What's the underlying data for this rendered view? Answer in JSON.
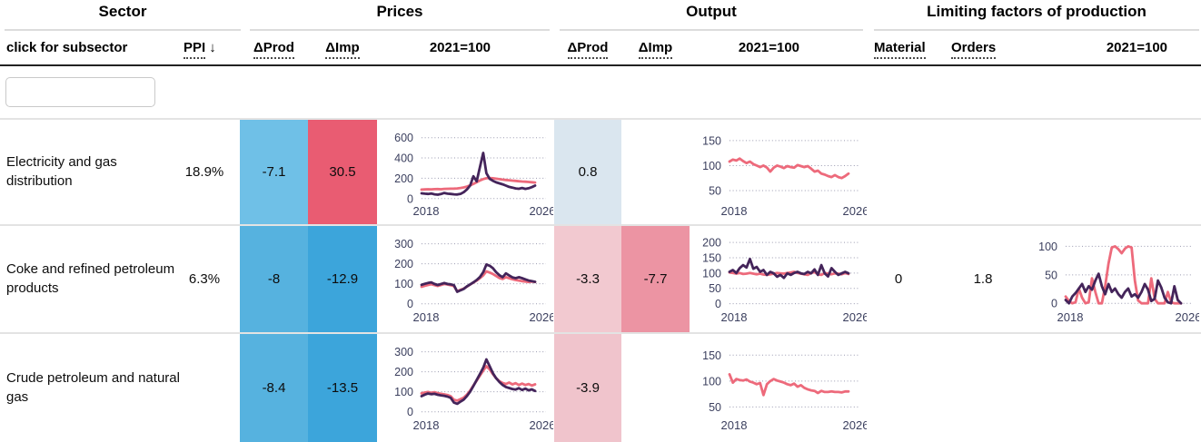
{
  "table": {
    "groups": {
      "sector": "Sector",
      "prices": "Prices",
      "output": "Output",
      "limiting": "Limiting factors of production"
    },
    "columns": {
      "sector": "click for subsector",
      "ppi": "PPI",
      "sort_arrow": "↓",
      "prices_dprod": "ΔProd",
      "prices_dimp": "ΔImp",
      "prices_index": "2021=100",
      "output_dprod": "ΔProd",
      "output_dimp": "ΔImp",
      "output_index": "2021=100",
      "material": "Material",
      "orders": "Orders",
      "limiting_index": "2021=100"
    },
    "search": {
      "value": "",
      "placeholder": ""
    }
  },
  "rows": [
    {
      "sector": "Electricity and gas distribution",
      "ppi": "18.9%",
      "prices_dprod": {
        "value": "-7.1",
        "bg": "#6FC0E7"
      },
      "prices_dimp": {
        "value": "30.5",
        "bg": "#E95C72"
      },
      "output_dprod": {
        "value": "0.8",
        "bg": "#DAE6EF"
      },
      "output_dimp": {
        "value": "",
        "bg": ""
      },
      "material": "",
      "orders": ""
    },
    {
      "sector": "Coke and refined petroleum products",
      "ppi": "6.3%",
      "prices_dprod": {
        "value": "-8",
        "bg": "#56B2DF"
      },
      "prices_dimp": {
        "value": "-12.9",
        "bg": "#3CA5DB"
      },
      "output_dprod": {
        "value": "-3.3",
        "bg": "#F2C9D0"
      },
      "output_dimp": {
        "value": "-7.7",
        "bg": "#EC94A3"
      },
      "material": "0",
      "orders": "1.8"
    },
    {
      "sector": "Crude petroleum and natural gas",
      "ppi": "",
      "prices_dprod": {
        "value": "-8.4",
        "bg": "#56B2DF"
      },
      "prices_dimp": {
        "value": "-13.5",
        "bg": "#3CA5DB"
      },
      "output_dprod": {
        "value": "-3.9",
        "bg": "#F0C4CC"
      },
      "output_dimp": {
        "value": "",
        "bg": ""
      },
      "material": "",
      "orders": ""
    }
  ],
  "chart_style": {
    "grid_color": "#9a9ab0",
    "tick_color": "#3b3f5e",
    "producer_color": "#ED6A7B",
    "import_color": "#44245A"
  },
  "chart_data": [
    {
      "id": "r0-prices",
      "type": "line",
      "title": "Prices 2021=100",
      "x_start": 2018,
      "x_end": 2026,
      "xticks": [
        "2018",
        "2026"
      ],
      "ylim": [
        -20,
        660
      ],
      "yticks": [
        0,
        200,
        400,
        600
      ],
      "series": [
        {
          "name": "producer-prices",
          "color": "#ED6A7B",
          "values": [
            88,
            90,
            92,
            91,
            93,
            94,
            92,
            95,
            96,
            97,
            98,
            100,
            104,
            110,
            118,
            130,
            145,
            162,
            178,
            192,
            200,
            203,
            200,
            196,
            191,
            187,
            183,
            180,
            177,
            174,
            171,
            168,
            166,
            163,
            161,
            158
          ]
        },
        {
          "name": "import-prices",
          "color": "#44245A",
          "values": [
            52,
            48,
            45,
            50,
            42,
            38,
            44,
            55,
            48,
            45,
            42,
            40,
            46,
            62,
            90,
            130,
            220,
            170,
            310,
            450,
            250,
            195,
            175,
            160,
            150,
            140,
            128,
            115,
            108,
            100,
            96,
            104,
            95,
            102,
            112,
            128
          ]
        }
      ]
    },
    {
      "id": "r0-output",
      "type": "line",
      "title": "Output 2021=100",
      "x_start": 2018,
      "x_end": 2026,
      "xticks": [
        "2018",
        "2026"
      ],
      "ylim": [
        30,
        168
      ],
      "yticks": [
        50,
        100,
        150
      ],
      "series": [
        {
          "name": "production",
          "color": "#ED6A7B",
          "values": [
            108,
            112,
            110,
            114,
            109,
            105,
            108,
            103,
            100,
            97,
            100,
            96,
            88,
            96,
            100,
            98,
            95,
            99,
            97,
            96,
            101,
            99,
            97,
            99,
            94,
            88,
            90,
            84,
            82,
            79,
            77,
            81,
            77,
            75,
            79,
            84
          ]
        }
      ]
    },
    {
      "id": "r1-prices",
      "type": "line",
      "title": "Prices 2021=100",
      "x_start": 2018,
      "x_end": 2026,
      "xticks": [
        "2018",
        "2026"
      ],
      "ylim": [
        -15,
        330
      ],
      "yticks": [
        0,
        100,
        200,
        300
      ],
      "series": [
        {
          "name": "producer-prices",
          "color": "#ED6A7B",
          "values": [
            85,
            90,
            94,
            98,
            93,
            89,
            94,
            99,
            96,
            93,
            88,
            62,
            70,
            76,
            86,
            96,
            106,
            116,
            128,
            142,
            162,
            156,
            149,
            139,
            129,
            124,
            133,
            128,
            123,
            119,
            116,
            113,
            111,
            109,
            111,
            109
          ]
        },
        {
          "name": "import-prices",
          "color": "#44245A",
          "values": [
            95,
            100,
            104,
            107,
            99,
            94,
            99,
            104,
            99,
            97,
            93,
            60,
            67,
            74,
            87,
            97,
            107,
            119,
            134,
            158,
            196,
            190,
            178,
            158,
            143,
            133,
            152,
            142,
            132,
            128,
            133,
            128,
            122,
            116,
            113,
            110
          ]
        }
      ]
    },
    {
      "id": "r1-output",
      "type": "line",
      "title": "Output 2021=100",
      "x_start": 2018,
      "x_end": 2026,
      "xticks": [
        "2018",
        "2026"
      ],
      "ylim": [
        -10,
        215
      ],
      "yticks": [
        0,
        50,
        100,
        150,
        200
      ],
      "series": [
        {
          "name": "production",
          "color": "#ED6A7B",
          "values": [
            102,
            100,
            98,
            100,
            97,
            98,
            100,
            98,
            96,
            98,
            95,
            94,
            96,
            98,
            100,
            99,
            98,
            100,
            102,
            104,
            100,
            98,
            96,
            94,
            100,
            103,
            96,
            94,
            100,
            98,
            96,
            99,
            98,
            96,
            100,
            97
          ]
        },
        {
          "name": "imports",
          "color": "#44245A",
          "values": [
            104,
            110,
            100,
            116,
            126,
            118,
            146,
            114,
            120,
            104,
            110,
            94,
            104,
            99,
            88,
            94,
            84,
            99,
            94,
            100,
            104,
            99,
            97,
            104,
            99,
            112,
            94,
            126,
            99,
            89,
            116,
            104,
            94,
            99,
            104,
            99
          ]
        }
      ]
    },
    {
      "id": "r1-limiting",
      "type": "line",
      "title": "Limiting factors 2021=100",
      "x_start": 2018,
      "x_end": 2026,
      "xticks": [
        "2018",
        "2026"
      ],
      "ylim": [
        -6,
        115
      ],
      "yticks": [
        0,
        50,
        100
      ],
      "series": [
        {
          "name": "material",
          "color": "#ED6A7B",
          "values": [
            12,
            4,
            0,
            2,
            26,
            10,
            0,
            2,
            44,
            20,
            0,
            0,
            30,
            70,
            98,
            100,
            95,
            88,
            96,
            100,
            98,
            40,
            5,
            0,
            0,
            0,
            44,
            8,
            0,
            0,
            0,
            20,
            2,
            0,
            0,
            0
          ]
        },
        {
          "name": "orders",
          "color": "#44245A",
          "values": [
            6,
            0,
            12,
            18,
            26,
            34,
            20,
            30,
            24,
            40,
            52,
            30,
            16,
            34,
            20,
            26,
            16,
            10,
            20,
            26,
            12,
            16,
            10,
            20,
            34,
            24,
            4,
            8,
            40,
            28,
            10,
            2,
            0,
            30,
            6,
            0
          ]
        }
      ]
    },
    {
      "id": "r2-prices",
      "type": "line",
      "title": "Prices 2021=100",
      "x_start": 2018,
      "x_end": 2026,
      "xticks": [
        "2018",
        "2026"
      ],
      "ylim": [
        -15,
        330
      ],
      "yticks": [
        0,
        100,
        200,
        300
      ],
      "series": [
        {
          "name": "producer-prices",
          "color": "#ED6A7B",
          "values": [
            92,
            96,
            99,
            95,
            98,
            93,
            90,
            87,
            84,
            78,
            60,
            56,
            63,
            71,
            86,
            106,
            131,
            156,
            181,
            206,
            228,
            212,
            188,
            168,
            153,
            144,
            139,
            146,
            137,
            143,
            134,
            141,
            134,
            139,
            131,
            137
          ]
        },
        {
          "name": "import-prices",
          "color": "#44245A",
          "values": [
            78,
            86,
            91,
            88,
            90,
            85,
            82,
            80,
            76,
            70,
            46,
            40,
            51,
            61,
            79,
            101,
            129,
            159,
            189,
            220,
            262,
            228,
            193,
            168,
            149,
            134,
            124,
            119,
            114,
            111,
            118,
            109,
            116,
            107,
            112,
            104
          ]
        }
      ]
    },
    {
      "id": "r2-output",
      "type": "line",
      "title": "Output 2021=100",
      "x_start": 2018,
      "x_end": 2026,
      "xticks": [
        "2018",
        "2026"
      ],
      "ylim": [
        35,
        168
      ],
      "yticks": [
        50,
        100,
        150
      ],
      "series": [
        {
          "name": "production",
          "color": "#ED6A7B",
          "values": [
            113,
            97,
            104,
            102,
            101,
            103,
            99,
            97,
            94,
            96,
            73,
            94,
            100,
            104,
            101,
            99,
            97,
            94,
            92,
            95,
            89,
            92,
            87,
            84,
            82,
            81,
            77,
            81,
            79,
            79,
            80,
            79,
            79,
            78,
            80,
            80
          ]
        }
      ]
    }
  ]
}
